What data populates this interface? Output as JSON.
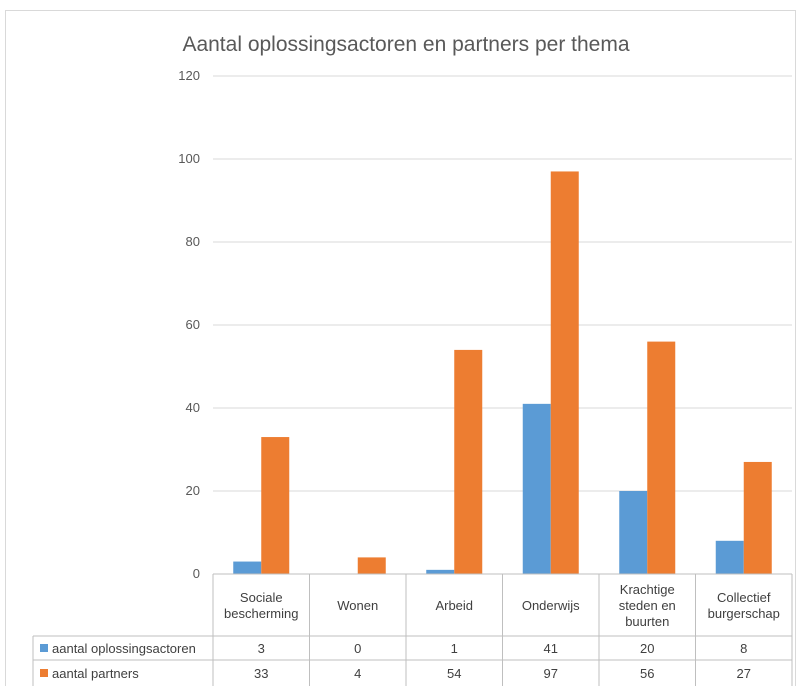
{
  "chart_data": {
    "type": "bar",
    "title": "Aantal oplossingsactoren en partners per thema",
    "categories": [
      [
        "Sociale",
        "bescherming"
      ],
      [
        "Wonen"
      ],
      [
        "Arbeid"
      ],
      [
        "Onderwijs"
      ],
      [
        "Krachtige",
        "steden en",
        "buurten"
      ],
      [
        "Collectief",
        "burgerschap"
      ]
    ],
    "series": [
      {
        "name": "aantal oplossingsactoren",
        "color": "#5b9bd5",
        "values": [
          3,
          0,
          1,
          41,
          20,
          8
        ]
      },
      {
        "name": "aantal partners",
        "color": "#ed7d31",
        "values": [
          33,
          4,
          54,
          97,
          56,
          27
        ]
      }
    ],
    "ylim": [
      0,
      120
    ],
    "yticks": [
      0,
      20,
      40,
      60,
      80,
      100,
      120
    ],
    "grid": true,
    "legend": "data table below chart"
  }
}
